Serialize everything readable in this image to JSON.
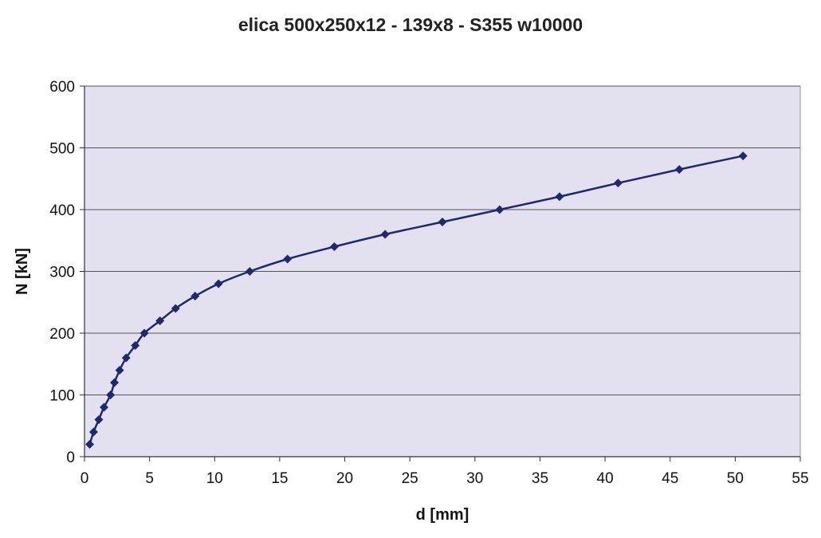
{
  "chart_data": {
    "type": "scatter",
    "title": "elica 500x250x12 - 139x8 - S355 w10000",
    "xlabel": "d [mm]",
    "ylabel": "N [kN]",
    "xlim": [
      0,
      55
    ],
    "ylim": [
      0,
      600
    ],
    "xticks": [
      0,
      5,
      10,
      15,
      20,
      25,
      30,
      35,
      40,
      45,
      50,
      55
    ],
    "yticks": [
      0,
      100,
      200,
      300,
      400,
      500,
      600
    ],
    "grid": "horizontal",
    "legend": "none",
    "plot_background": "#e3e0ef",
    "series_color": "#1f2a6e",
    "series": [
      {
        "marker": "diamond",
        "line": "smooth",
        "x": [
          0.4,
          0.7,
          1.1,
          1.5,
          2.0,
          2.3,
          2.7,
          3.2,
          3.9,
          4.6,
          5.8,
          7.0,
          8.5,
          10.3,
          12.7,
          15.6,
          19.2,
          23.1,
          27.5,
          31.9,
          36.5,
          41.0,
          45.7,
          50.6
        ],
        "y": [
          20,
          40,
          60,
          80,
          100,
          120,
          140,
          160,
          180,
          200,
          220,
          240,
          260,
          280,
          300,
          320,
          340,
          360,
          380,
          400,
          421,
          443,
          465,
          487
        ]
      }
    ]
  }
}
